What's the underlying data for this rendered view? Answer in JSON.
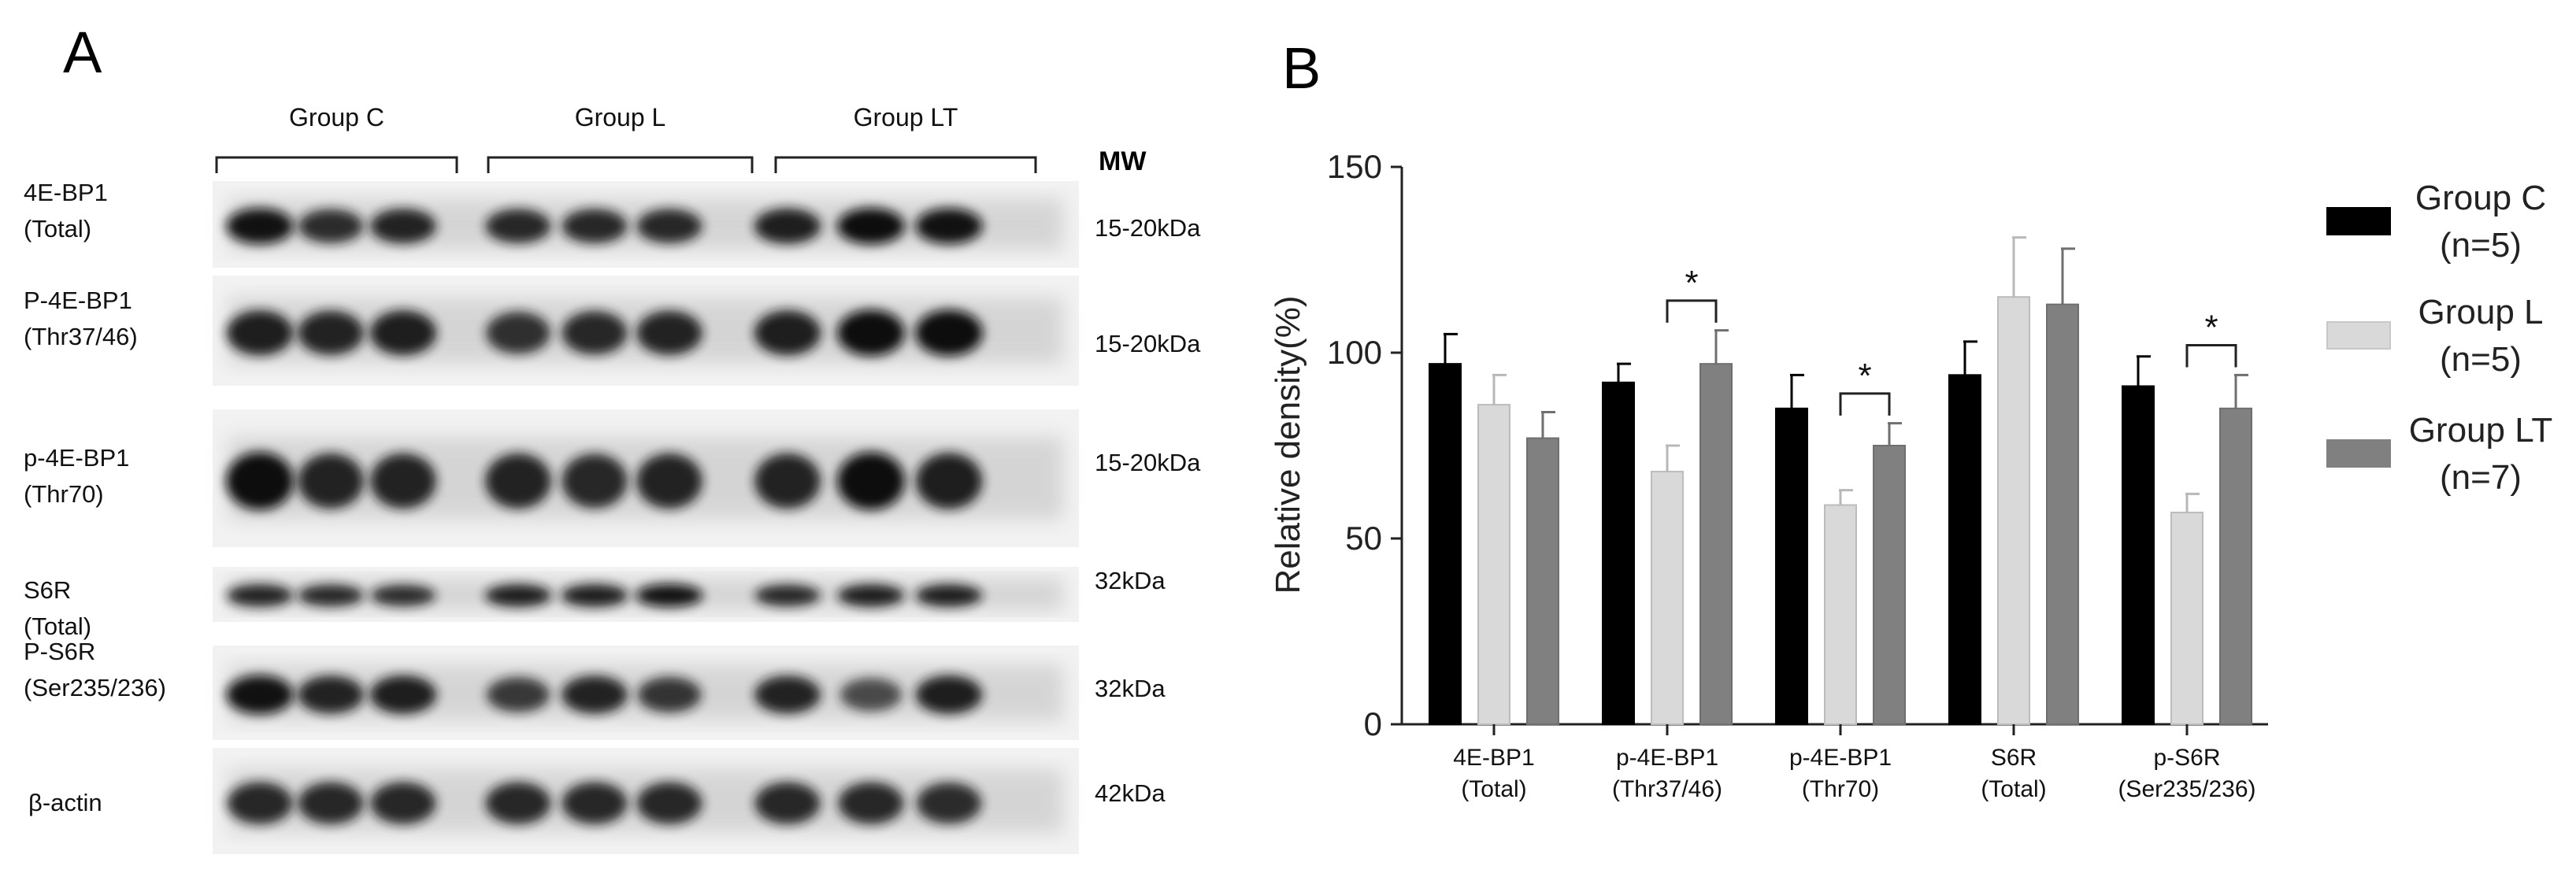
{
  "panel_a": {
    "label": "A",
    "groups": [
      "Group C",
      "Group L",
      "Group LT"
    ],
    "mw_header": "MW",
    "lanes_per_group": 3,
    "blots": [
      {
        "name": "4E-BP1",
        "detail": "(Total)",
        "mw": "15-20kDa",
        "band_intensity": [
          0.95,
          0.75,
          0.85,
          0.8,
          0.8,
          0.8,
          0.9,
          1.0,
          0.95
        ]
      },
      {
        "name": "P-4E-BP1",
        "detail": "(Thr37/46)",
        "mw": "15-20kDa",
        "band_intensity": [
          0.9,
          0.85,
          0.9,
          0.7,
          0.8,
          0.85,
          0.9,
          1.0,
          1.0
        ]
      },
      {
        "name": "p-4E-BP1",
        "detail": "(Thr70)",
        "mw": "15-20kDa",
        "band_intensity": [
          1.0,
          0.85,
          0.85,
          0.85,
          0.8,
          0.85,
          0.85,
          1.0,
          0.9
        ]
      },
      {
        "name": "S6R",
        "detail": "(Total)",
        "mw": "32kDa",
        "band_intensity": [
          0.85,
          0.8,
          0.75,
          0.9,
          0.9,
          0.95,
          0.8,
          0.9,
          0.9
        ]
      },
      {
        "name": "P-S6R",
        "detail": "(Ser235/236)",
        "mw": "32kDa",
        "band_intensity": [
          0.95,
          0.85,
          0.9,
          0.6,
          0.85,
          0.65,
          0.85,
          0.45,
          0.9
        ]
      },
      {
        "name": "β-actin",
        "detail": "",
        "mw": "42kDa",
        "band_intensity": [
          0.8,
          0.8,
          0.8,
          0.8,
          0.8,
          0.8,
          0.8,
          0.8,
          0.75
        ]
      }
    ]
  },
  "panel_b": {
    "label": "B"
  },
  "chart_data": {
    "type": "bar",
    "title": "",
    "xlabel": "",
    "ylabel": "Relative density(%)",
    "ylim": [
      0,
      150
    ],
    "yticks": [
      0,
      50,
      100,
      150
    ],
    "grid": false,
    "legend_position": "right",
    "categories": [
      [
        "4E-BP1",
        "(Total)"
      ],
      [
        "p-4E-BP1",
        "(Thr37/46)"
      ],
      [
        "p-4E-BP1",
        "(Thr70)"
      ],
      [
        "S6R",
        "(Total)"
      ],
      [
        "p-S6R",
        "(Ser235/236)"
      ]
    ],
    "series": [
      {
        "name": "Group C",
        "n": "(n=5)",
        "color": "#000000",
        "values": [
          97,
          92,
          85,
          94,
          91
        ],
        "errors": [
          8,
          5,
          9,
          9,
          8
        ]
      },
      {
        "name": "Group L",
        "n": "(n=5)",
        "color": "#d9d9d9",
        "values": [
          86,
          68,
          59,
          115,
          57
        ],
        "errors": [
          8,
          7,
          4,
          16,
          5
        ]
      },
      {
        "name": "Group LT",
        "n": "(n=7)",
        "color": "#808080",
        "values": [
          77,
          97,
          75,
          113,
          85
        ],
        "errors": [
          7,
          9,
          6,
          15,
          9
        ]
      }
    ],
    "significance": [
      {
        "category": 1,
        "label": "*"
      },
      {
        "category": 2,
        "label": "*"
      },
      {
        "category": 4,
        "label": "*"
      }
    ]
  }
}
